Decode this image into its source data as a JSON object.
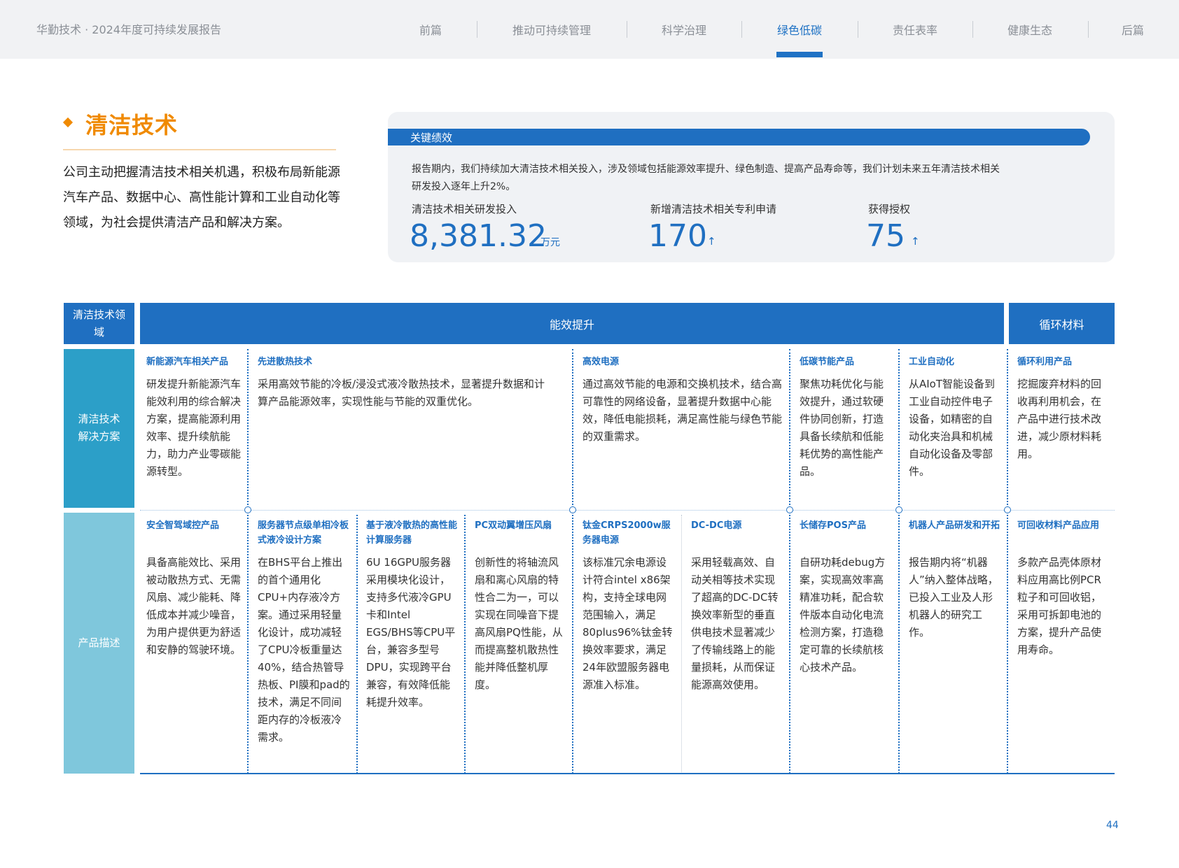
{
  "header": {
    "report_title": "华勤技术 · 2024年度可持续发展报告",
    "nav": [
      "前篇",
      "推动可持续管理",
      "科学治理",
      "绿色低碳",
      "责任表率",
      "健康生态",
      "后篇"
    ],
    "active_nav": "绿色低碳"
  },
  "section": {
    "title": "清洁技术",
    "intro": "公司主动把握清洁技术相关机遇，积极布局新能源汽车产品、数据中心、高性能计算和工业自动化等领域，为社会提供清洁产品和解决方案。"
  },
  "kpi": {
    "bar_label": "关键绩效",
    "description": "报告期内，我们持续加大清洁技术相关投入，涉及领域包括能源效率提升、绿色制造、提高产品寿命等，我们计划未来五年清洁技术相关研发投入逐年上升2%。",
    "items": [
      {
        "label": "清洁技术相关研发投入",
        "value": "8,381.32",
        "unit": "万元",
        "arrow": ""
      },
      {
        "label": "新增清洁技术相关专利申请",
        "value": "170",
        "unit": "",
        "arrow": "↑"
      },
      {
        "label": "获得授权",
        "value": "75",
        "unit": "",
        "arrow": "↑"
      }
    ]
  },
  "table": {
    "row_labels": {
      "domain": "清洁技术领域",
      "solution": "清洁技术解决方案",
      "product": "产品描述"
    },
    "domains": {
      "efficiency": "能效提升",
      "circular": "循环材料"
    },
    "solutions": [
      {
        "title": "新能源汽车相关产品",
        "body": "研发提升新能源汽车能效利用的综合解决方案，提高能源利用效率、提升续航能力，助力产业零碳能源转型。"
      },
      {
        "title": "先进散热技术",
        "body": "采用高效节能的冷板/浸没式液冷散热技术，显著提升数据和计算产品能源效率，实现性能与节能的双重优化。"
      },
      {
        "title": "高效电源",
        "body": "通过高效节能的电源和交换机技术，结合高可靠性的网络设备，显著提升数据中心能效，降低电能损耗，满足高性能与绿色节能的双重需求。"
      },
      {
        "title": "低碳节能产品",
        "body": "聚焦功耗优化与能效提升，通过软硬件协同创新，打造具备长续航和低能耗优势的高性能产品。"
      },
      {
        "title": "工业自动化",
        "body": "从AIoT智能设备到工业自动控件电子设备，如精密的自动化夹治具和机械自动化设备及零部件。"
      },
      {
        "title": "循环利用产品",
        "body": "挖掘废弃材料的回收再利用机会，在产品中进行技术改进，减少原材料耗用。"
      }
    ],
    "products": [
      {
        "title": "安全智驾域控产品",
        "body": "具备高能效比、采用被动散热方式、无需风扇、减少能耗、降低成本并减少噪音，为用户提供更为舒适和安静的驾驶环境。"
      },
      {
        "title": "服务器节点级单相冷板式液冷设计方案",
        "body": "在BHS平台上推出的首个通用化CPU+内存液冷方案。通过采用轻量化设计，成功减轻了CPU冷板重量达40%，结合热管导热板、PI膜和pad的技术，满足不同间距内存的冷板液冷需求。"
      },
      {
        "title": "基于液冷散热的高性能计算服务器",
        "body": "6U 16GPU服务器采用模块化设计，支持多代液冷GPU卡和Intel EGS/BHS等CPU平台，兼容多型号DPU，实现跨平台兼容，有效降低能耗提升效率。"
      },
      {
        "title": "PC双动翼增压风扇",
        "body": "创新性的将轴流风扇和离心风扇的特性合二为一，可以实现在同噪音下提高风扇PQ性能，从而提高整机散热性能并降低整机厚度。"
      },
      {
        "title": "钛金CRPS2000w服务器电源",
        "body": "该标准冗余电源设计符合intel x86架构，支持全球电网范围输入，满足80plus96%钛金转换效率要求，满足24年欧盟服务器电源准入标准。"
      },
      {
        "title": "DC-DC电源",
        "body": "采用轻载高效、自动关相等技术实现了超高的DC-DC转换效率新型的垂直供电技术显著减少了传输线路上的能量损耗，从而保证能源高效使用。"
      },
      {
        "title": "长储存POS产品",
        "body": "自研功耗debug方案，实现高效率高精准功耗，配合软件版本自动化电流检测方案，打造稳定可靠的长续航核心技术产品。"
      },
      {
        "title": "机器人产品研发和开拓",
        "body": "报告期内将“机器人”纳入整体战略，已投入工业及人形机器人的研究工作。"
      },
      {
        "title": "可回收材料产品应用",
        "body": "多款产品壳体原材料应用高比例PCR粒子和可回收铝，采用可拆卸电池的方案，提升产品使用寿命。"
      }
    ]
  },
  "page_number": "44",
  "colors": {
    "accent": "#1f6fc1",
    "title_orange": "#f08a00",
    "side_dark": "#2c9fc8",
    "side_light": "#7fc7dc"
  }
}
